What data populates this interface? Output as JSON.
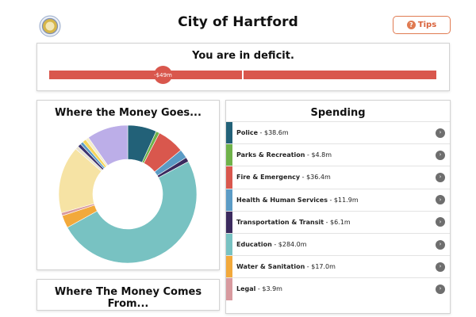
{
  "header": {
    "title": "City of Hartford",
    "tips_label": "Tips",
    "seal_icon": "city-seal-icon",
    "tips_icon": "lightbulb-icon"
  },
  "deficit": {
    "status_text": "You are in deficit.",
    "amount_label": "-$49m",
    "bar_color": "#d9574d"
  },
  "where_money_goes": {
    "title": "Where the Money Goes..."
  },
  "where_money_comes": {
    "title": "Where The Money Comes From..."
  },
  "spending": {
    "title": "Spending",
    "items": [
      {
        "name": "Police",
        "amount": " - $38.6m",
        "color": "#226178"
      },
      {
        "name": "Parks & Recreation",
        "amount": " - $4.8m",
        "color": "#6fb24a"
      },
      {
        "name": "Fire & Emergency",
        "amount": " - $36.4m",
        "color": "#d9574d"
      },
      {
        "name": "Health & Human Services",
        "amount": " - $11.9m",
        "color": "#5b9bc5"
      },
      {
        "name": "Transportation & Transit",
        "amount": " - $6.1m",
        "color": "#3b2a5e"
      },
      {
        "name": "Education",
        "amount": " - $284.0m",
        "color": "#78c2c2"
      },
      {
        "name": "Water & Sanitation",
        "amount": " - $17.0m",
        "color": "#f2a93b"
      },
      {
        "name": "Legal",
        "amount": " - $3.9m",
        "color": "#d89a9f"
      }
    ]
  },
  "chart_data": {
    "type": "pie",
    "donut": true,
    "slices": [
      {
        "value": 38.6,
        "color": "#226178"
      },
      {
        "value": 4.8,
        "color": "#6fb24a"
      },
      {
        "value": 36.4,
        "color": "#d9574d"
      },
      {
        "value": 11.9,
        "color": "#5b9bc5"
      },
      {
        "value": 6.1,
        "color": "#3b2a5e"
      },
      {
        "value": 284.0,
        "color": "#78c2c2"
      },
      {
        "value": 17.0,
        "color": "#f2a93b"
      },
      {
        "value": 3.9,
        "color": "#d89a9f"
      },
      {
        "value": 90.0,
        "color": "#f6e3a4"
      },
      {
        "value": 4.5,
        "color": "#e8e2d0"
      },
      {
        "value": 4.5,
        "color": "#3d3470"
      },
      {
        "value": 4.0,
        "color": "#5b9bc5"
      },
      {
        "value": 5.0,
        "color": "#f6d65a"
      },
      {
        "value": 4.5,
        "color": "#f3eccd"
      },
      {
        "value": 55.0,
        "color": "#bcaee8"
      }
    ]
  }
}
